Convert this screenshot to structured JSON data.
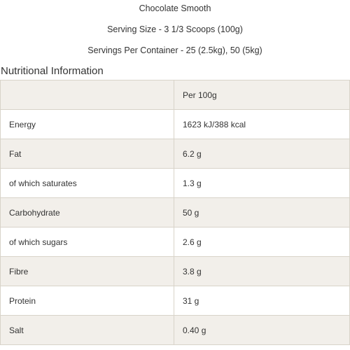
{
  "header": {
    "product_name": "Chocolate Smooth",
    "serving_size": "Serving Size - 3 1/3 Scoops (100g)",
    "servings_per_container": "Servings Per Container - 25 (2.5kg), 50 (5kg)"
  },
  "section_title": "Nutritional Information",
  "table": {
    "header_label": "",
    "header_value": "Per 100g",
    "rows": [
      {
        "label": "Energy",
        "value": "1623 kJ/388 kcal"
      },
      {
        "label": "Fat",
        "value": "6.2 g"
      },
      {
        "label": "of which saturates",
        "value": "1.3 g"
      },
      {
        "label": "Carbohydrate",
        "value": "50 g"
      },
      {
        "label": "of which sugars",
        "value": "2.6 g"
      },
      {
        "label": "Fibre",
        "value": "3.8 g"
      },
      {
        "label": "Protein",
        "value": "31 g"
      },
      {
        "label": "Salt",
        "value": "0.40 g"
      }
    ]
  },
  "colors": {
    "shaded_row": "#f2efea",
    "border": "#d8d3c9",
    "text": "#333333"
  }
}
